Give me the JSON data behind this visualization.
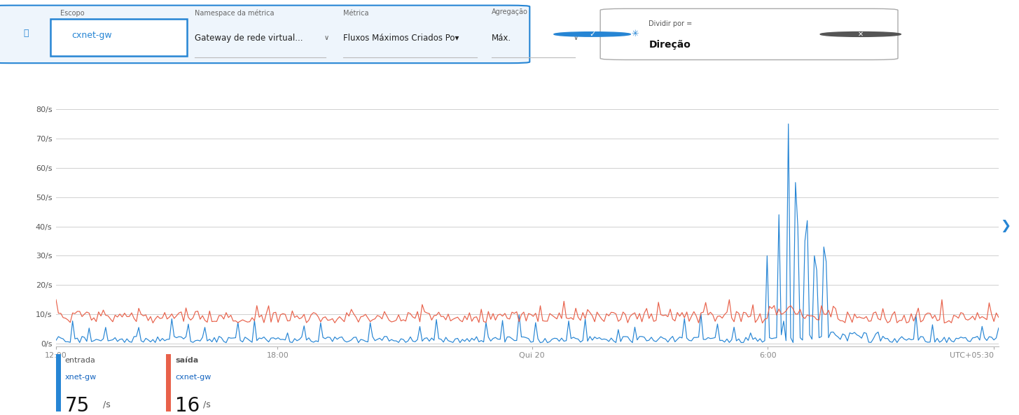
{
  "bg_color": "#ffffff",
  "grid_color": "#d0d0d0",
  "yticks": [
    0,
    10,
    20,
    30,
    40,
    50,
    60,
    70,
    80
  ],
  "ytick_labels": [
    "0/s",
    "10/s",
    "20/s",
    "30/s",
    "40/s",
    "50/s",
    "60/s",
    "70/s",
    "80/s"
  ],
  "xtick_labels": [
    "12:00",
    "18:00",
    "Qui 20",
    "6:00",
    "UTC+05:30"
  ],
  "xtick_positions": [
    0.0,
    0.235,
    0.505,
    0.755,
    0.995
  ],
  "ymax": 84,
  "blue_color": "#2685D4",
  "red_color": "#E8614A",
  "legend_blue_label1": "entrada",
  "legend_blue_label2": "xnet-gw",
  "legend_blue_value": "75",
  "legend_red_label1": "saída",
  "legend_red_label2": "cxnet-gw",
  "legend_red_value": "16",
  "unit": "/s",
  "header_border": "#2685D4",
  "escopo_label": "Escopo",
  "escopo_value": "cxnet-gw",
  "namespace_label": "Namespace da métrica",
  "namespace_value": "Gateway de rede virtual...",
  "metrica_label": "Métrica",
  "metrica_value": "Fluxos Máximos Criados Po▾",
  "agregacao_label": "Agregação",
  "agregacao_value": "Máx.",
  "dividir_label": "Direção",
  "dividir_prefix": "Dividir por = "
}
